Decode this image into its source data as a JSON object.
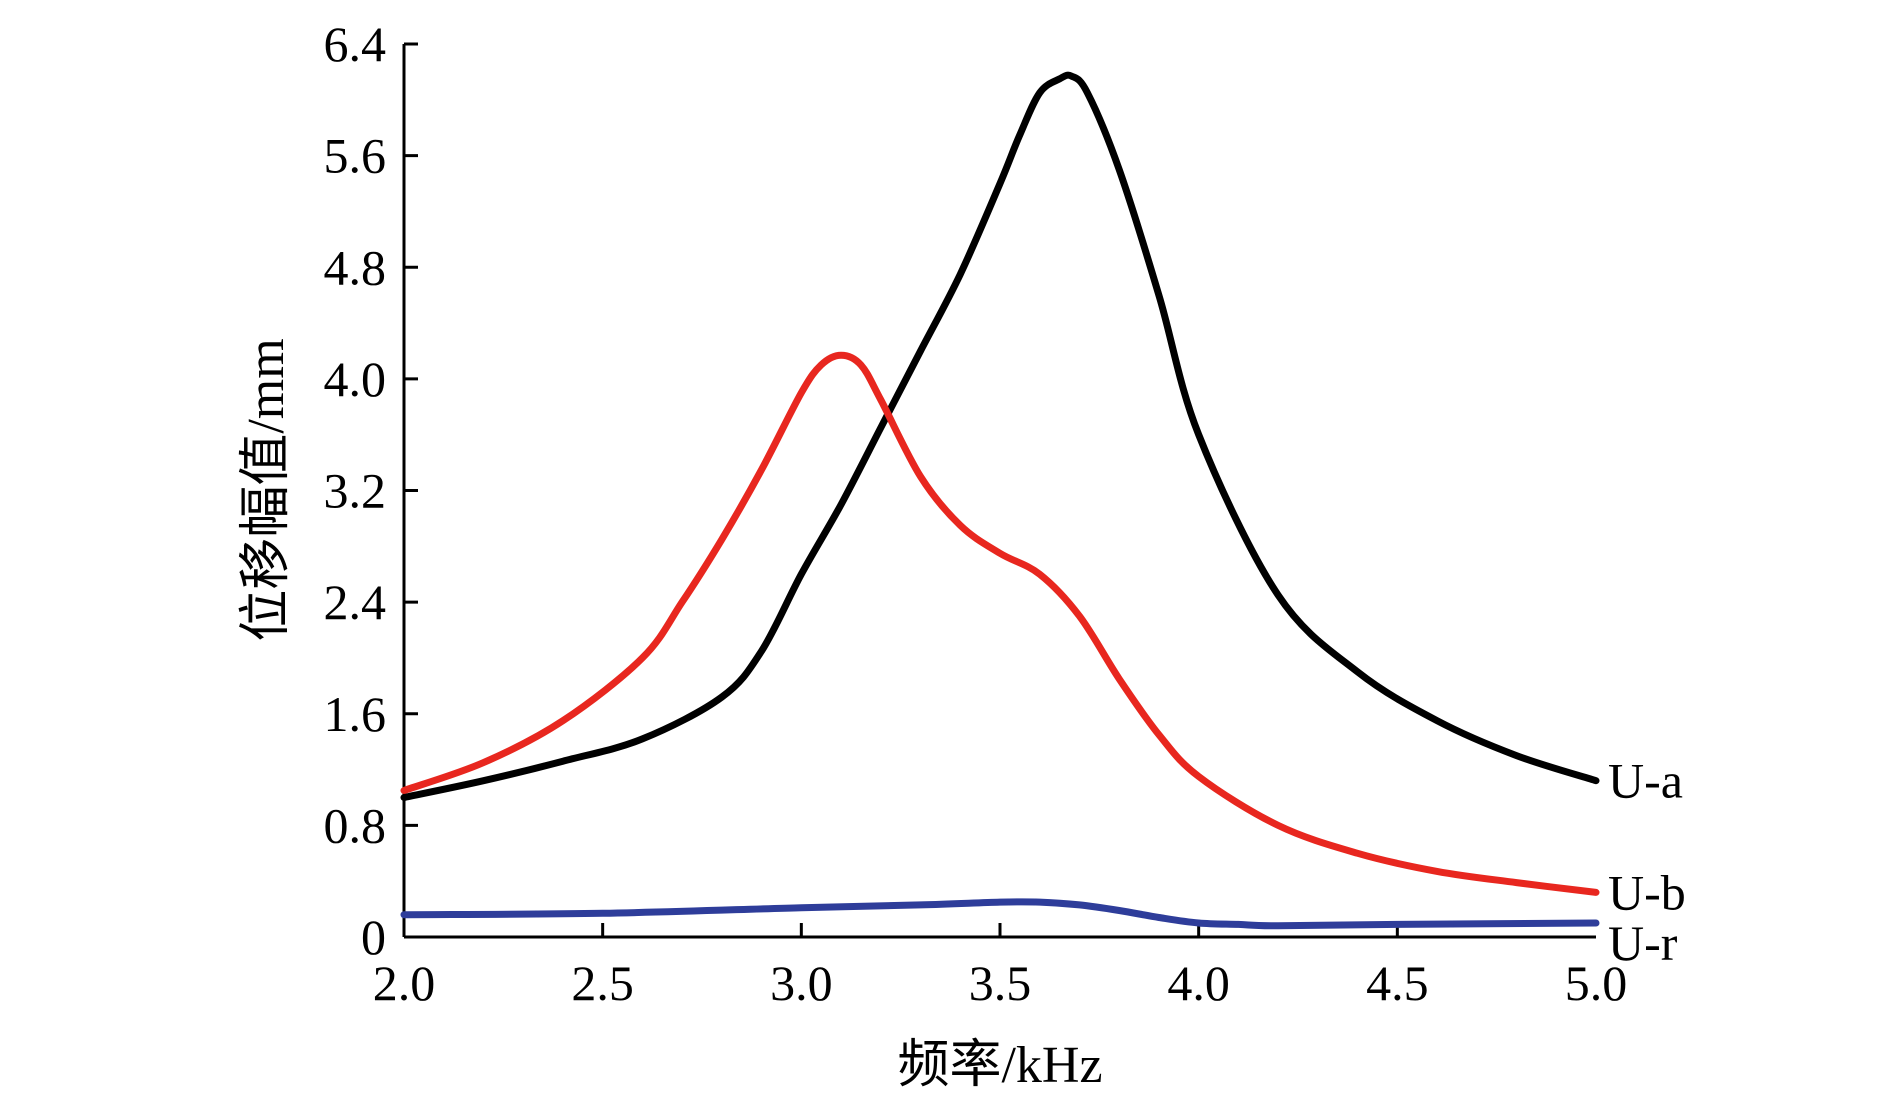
{
  "chart_data": {
    "type": "line",
    "xlabel": "频率/kHz",
    "ylabel": "位移幅值/mm",
    "xlim": [
      2.0,
      5.0
    ],
    "ylim": [
      0,
      6.4
    ],
    "xticks": [
      "2.0",
      "2.5",
      "3.0",
      "3.5",
      "4.0",
      "4.5",
      "5.0"
    ],
    "yticks": [
      "0",
      "0.8",
      "1.6",
      "2.4",
      "3.2",
      "4.0",
      "4.8",
      "5.6",
      "6.4"
    ],
    "grid": false,
    "legend": "inline labels at right end of each line",
    "series": [
      {
        "name": "U-a",
        "color": "#000000",
        "x": [
          2.0,
          2.2,
          2.4,
          2.6,
          2.8,
          2.9,
          3.0,
          3.1,
          3.2,
          3.3,
          3.4,
          3.5,
          3.55,
          3.6,
          3.65,
          3.68,
          3.72,
          3.8,
          3.9,
          4.0,
          4.2,
          4.4,
          4.6,
          4.8,
          5.0
        ],
        "y": [
          1.0,
          1.12,
          1.26,
          1.42,
          1.72,
          2.05,
          2.6,
          3.1,
          3.65,
          4.2,
          4.75,
          5.4,
          5.75,
          6.05,
          6.15,
          6.17,
          6.05,
          5.5,
          4.6,
          3.6,
          2.45,
          1.9,
          1.55,
          1.3,
          1.12
        ]
      },
      {
        "name": "U-b",
        "color": "#e8271f",
        "x": [
          2.0,
          2.2,
          2.4,
          2.6,
          2.7,
          2.8,
          2.9,
          3.0,
          3.05,
          3.1,
          3.15,
          3.2,
          3.3,
          3.4,
          3.5,
          3.6,
          3.7,
          3.8,
          3.9,
          4.0,
          4.2,
          4.4,
          4.6,
          4.8,
          5.0
        ],
        "y": [
          1.05,
          1.25,
          1.55,
          2.0,
          2.4,
          2.85,
          3.35,
          3.9,
          4.1,
          4.17,
          4.1,
          3.85,
          3.3,
          2.95,
          2.75,
          2.6,
          2.3,
          1.85,
          1.45,
          1.15,
          0.8,
          0.6,
          0.47,
          0.39,
          0.32
        ]
      },
      {
        "name": "U-r",
        "color": "#2e3d9a",
        "x": [
          2.0,
          2.5,
          3.0,
          3.3,
          3.5,
          3.6,
          3.7,
          3.8,
          3.9,
          4.0,
          4.1,
          4.2,
          4.5,
          5.0
        ],
        "y": [
          0.16,
          0.17,
          0.21,
          0.23,
          0.25,
          0.25,
          0.23,
          0.19,
          0.14,
          0.1,
          0.09,
          0.08,
          0.09,
          0.1
        ]
      }
    ]
  }
}
